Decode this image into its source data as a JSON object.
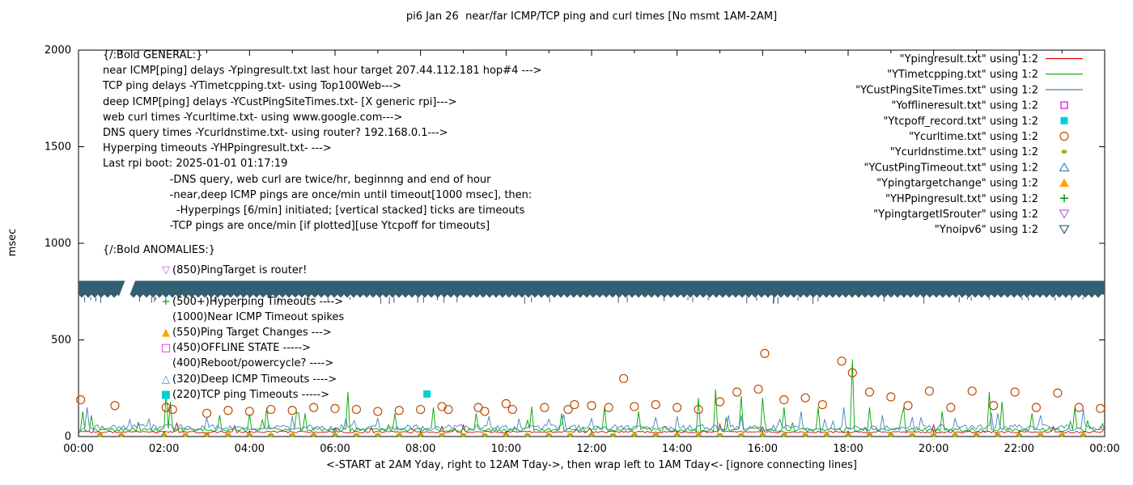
{
  "chart_data": {
    "type": "line",
    "title": "pi6 Jan 26  near/far ICMP/TCP ping and curl times [No msmt 1AM-2AM]",
    "xlabel": "<-START at 2AM Yday, right to 12AM Tday->, then wrap left to 1AM Tday<- [ignore connecting lines]",
    "ylabel": "msec",
    "xlim": [
      0,
      24
    ],
    "ylim": [
      0,
      2000
    ],
    "grid": false,
    "legend_position": "top-right-inside",
    "x_tick_values": [
      0,
      2,
      4,
      6,
      8,
      10,
      12,
      14,
      16,
      18,
      20,
      22,
      24
    ],
    "x_tick_labels": [
      "00:00",
      "02:00",
      "04:00",
      "06:00",
      "08:00",
      "10:00",
      "12:00",
      "14:00",
      "16:00",
      "18:00",
      "20:00",
      "22:00",
      "00:00"
    ],
    "y_tick_values": [
      0,
      500,
      1000,
      1500,
      2000
    ],
    "y_tick_labels": [
      "0",
      "500",
      "1000",
      "1500",
      "2000"
    ],
    "legend": [
      {
        "label": "\"Ypingresult.txt\" using 1:2",
        "sample": "line",
        "color": "#e00000"
      },
      {
        "label": "\"YTimetcpping.txt\" using 1:2",
        "sample": "line",
        "color": "#00a400"
      },
      {
        "label": "\"YCustPingSiteTimes.txt\" using 1:2",
        "sample": "line",
        "color": "#4682c4"
      },
      {
        "label": "\"Yofflineresult.txt\" using 1:2",
        "sample": "square-open",
        "color": "#e000e0"
      },
      {
        "label": "\"Ytcpoff_record.txt\" using 1:2",
        "sample": "square-fill",
        "color": "#00d0d0"
      },
      {
        "label": "\"Ycurltime.txt\" using 1:2",
        "sample": "circle-open",
        "color": "#bf4b00"
      },
      {
        "label": "\"Ycurldnstime.txt\" using 1:2",
        "sample": "circle-fill",
        "color": "#a8b400"
      },
      {
        "label": "\"YCustPingTimeout.txt\" using 1:2",
        "sample": "triangle-up-open",
        "color": "#4682c4"
      },
      {
        "label": "\"Ypingtargetchange\" using 1:2",
        "sample": "triangle-up-fill",
        "color": "#ffa500"
      },
      {
        "label": "\"YHPpingresult.txt\" using 1:2",
        "sample": "plus",
        "color": "#009000"
      },
      {
        "label": "\"YpingtargetISrouter\" using 1:2",
        "sample": "triangle-down-open",
        "color": "#bb66dd"
      },
      {
        "label": "\"Ynoipv6\" using 1:2",
        "sample": "triangle-down-open",
        "color": "#335f72"
      }
    ],
    "series": [
      {
        "name": "Ypingresult.txt",
        "kind": "noisy-line",
        "color": "#e00000",
        "base": 18,
        "noise": 10,
        "micro": 30,
        "micro_p": 0.03,
        "seed": 11,
        "spikes": [
          [
            2.3,
            70
          ],
          [
            9.0,
            60
          ],
          [
            15.0,
            65
          ],
          [
            20.0,
            60
          ]
        ]
      },
      {
        "name": "YTimetcpping.txt",
        "kind": "noisy-line",
        "color": "#00a400",
        "base": 25,
        "noise": 20,
        "micro": 90,
        "micro_p": 0.05,
        "seed": 22,
        "spikes": [
          [
            0.1,
            130
          ],
          [
            0.3,
            110
          ],
          [
            2.05,
            235
          ],
          [
            2.15,
            180
          ],
          [
            3.3,
            110
          ],
          [
            4.4,
            150
          ],
          [
            5.3,
            120
          ],
          [
            6.3,
            230
          ],
          [
            7.4,
            120
          ],
          [
            8.3,
            150
          ],
          [
            9.3,
            120
          ],
          [
            10.6,
            155
          ],
          [
            11.3,
            120
          ],
          [
            12.3,
            150
          ],
          [
            13.1,
            130
          ],
          [
            14.5,
            200
          ],
          [
            14.9,
            245
          ],
          [
            15.5,
            210
          ],
          [
            16.0,
            200
          ],
          [
            16.5,
            150
          ],
          [
            17.3,
            150
          ],
          [
            18.1,
            400
          ],
          [
            18.5,
            150
          ],
          [
            19.3,
            150
          ],
          [
            20.2,
            130
          ],
          [
            21.3,
            230
          ],
          [
            21.6,
            180
          ],
          [
            22.3,
            120
          ],
          [
            23.3,
            150
          ]
        ]
      },
      {
        "name": "YCustPingSiteTimes.txt",
        "kind": "noisy-line",
        "color": "#4682c4",
        "base": 30,
        "noise": 32,
        "micro": 70,
        "micro_p": 0.05,
        "seed": 33,
        "spikes": [
          [
            0.2,
            150
          ],
          [
            3.0,
            100
          ],
          [
            5.0,
            105
          ],
          [
            7.0,
            95
          ],
          [
            9.6,
            105
          ],
          [
            11.0,
            90
          ],
          [
            12.0,
            95
          ],
          [
            13.5,
            100
          ],
          [
            14.0,
            105
          ],
          [
            15.2,
            110
          ],
          [
            16.9,
            130
          ],
          [
            17.9,
            150
          ],
          [
            18.8,
            110
          ],
          [
            19.5,
            100
          ],
          [
            20.5,
            95
          ],
          [
            21.5,
            120
          ],
          [
            22.5,
            110
          ],
          [
            23.5,
            140
          ]
        ]
      },
      {
        "name": "Ycurltime.txt",
        "kind": "scatter",
        "marker": "circle-open",
        "color": "#bf4b00",
        "points": [
          [
            0.05,
            190
          ],
          [
            0.85,
            160
          ],
          [
            2.05,
            150
          ],
          [
            2.2,
            140
          ],
          [
            3.0,
            120
          ],
          [
            3.5,
            135
          ],
          [
            4.0,
            130
          ],
          [
            4.5,
            140
          ],
          [
            5.0,
            135
          ],
          [
            5.5,
            150
          ],
          [
            6.0,
            145
          ],
          [
            6.5,
            140
          ],
          [
            7.0,
            130
          ],
          [
            7.5,
            135
          ],
          [
            8.0,
            140
          ],
          [
            8.5,
            155
          ],
          [
            8.65,
            140
          ],
          [
            9.35,
            150
          ],
          [
            9.5,
            130
          ],
          [
            10.0,
            170
          ],
          [
            10.15,
            140
          ],
          [
            10.9,
            150
          ],
          [
            11.45,
            140
          ],
          [
            11.6,
            165
          ],
          [
            12.0,
            160
          ],
          [
            12.4,
            150
          ],
          [
            12.75,
            300
          ],
          [
            13.0,
            155
          ],
          [
            13.5,
            165
          ],
          [
            14.0,
            150
          ],
          [
            14.5,
            140
          ],
          [
            15.0,
            180
          ],
          [
            15.4,
            230
          ],
          [
            15.9,
            245
          ],
          [
            16.05,
            430
          ],
          [
            16.5,
            190
          ],
          [
            17.0,
            200
          ],
          [
            17.4,
            165
          ],
          [
            17.85,
            390
          ],
          [
            18.1,
            330
          ],
          [
            18.5,
            230
          ],
          [
            19.0,
            205
          ],
          [
            19.4,
            160
          ],
          [
            19.9,
            235
          ],
          [
            20.4,
            150
          ],
          [
            20.9,
            235
          ],
          [
            21.4,
            160
          ],
          [
            21.9,
            230
          ],
          [
            22.4,
            150
          ],
          [
            22.9,
            225
          ],
          [
            23.4,
            150
          ],
          [
            23.9,
            145
          ]
        ]
      },
      {
        "name": "Ycurldnstime.txt",
        "kind": "scatter",
        "marker": "circle-fill",
        "color": "#a8b400",
        "points_pattern": {
          "x_start": 0.5,
          "x_step": 0.5,
          "x_end": 23.75,
          "y": 8,
          "gap": [
            1,
            2
          ]
        }
      },
      {
        "name": "Ytcpoff_record.txt",
        "kind": "scatter",
        "marker": "square-fill",
        "color": "#00d0d0",
        "points": [
          [
            8.15,
            220
          ]
        ]
      },
      {
        "name": "Ynoipv6",
        "kind": "band",
        "color": "#335f72",
        "y_range": [
          718,
          806
        ],
        "gap_x": [
          0.98,
          1.22
        ]
      }
    ],
    "annotations": {
      "general": [
        "{/:Bold GENERAL:}",
        "near ICMP[ping] delays -Ypingresult.txt last hour target 207.44.112.181 hop#4 --->",
        "TCP ping delays -YTimetcpping.txt- using Top100Web--->",
        "deep ICMP[ping] delays -YCustPingSiteTimes.txt- [X generic rpi]--->",
        "web curl times -Ycurltime.txt- using www.google.com--->",
        "DNS query times -Ycurldnstime.txt- using router? 192.168.0.1--->",
        "Hyperping timeouts -YHPpingresult.txt- --->",
        "Last rpi boot: 2025-01-01 01:17:19",
        "                    -DNS query, web curl are twice/hr, beginnng and end of hour",
        "                    -near,deep ICMP pings are once/min until timeout[1000 msec], then:",
        "                      -Hyperpings [6/min] initiated; [vertical stacked] ticks are timeouts",
        "                    -TCP pings are once/min [if plotted][use Ytcpoff for timeouts]"
      ],
      "anomalies": {
        "header": "{/:Bold ANOMALIES:}",
        "items": [
          {
            "marker": "triangle-down-open",
            "color": "#bb66dd",
            "text": "(850)PingTarget is router!"
          },
          {
            "marker": "plus",
            "color": "#009000",
            "text": "(500+)Hyperping Timeouts ---->"
          },
          {
            "marker": "",
            "color": "",
            "text": "(1000)Near ICMP Timeout spikes"
          },
          {
            "marker": "triangle-up-fill",
            "color": "#ffa500",
            "text": "(550)Ping Target Changes --->"
          },
          {
            "marker": "square-open",
            "color": "#e000e0",
            "text": "(450)OFFLINE STATE ----->"
          },
          {
            "marker": "",
            "color": "",
            "text": "(400)Reboot/powercycle? ---->"
          },
          {
            "marker": "triangle-up-open",
            "color": "#4682c4",
            "text": "(320)Deep ICMP Timeouts ---->"
          },
          {
            "marker": "square-fill",
            "color": "#00d0d0",
            "text": "(220)TCP ping Timeouts ----->"
          }
        ]
      }
    }
  }
}
